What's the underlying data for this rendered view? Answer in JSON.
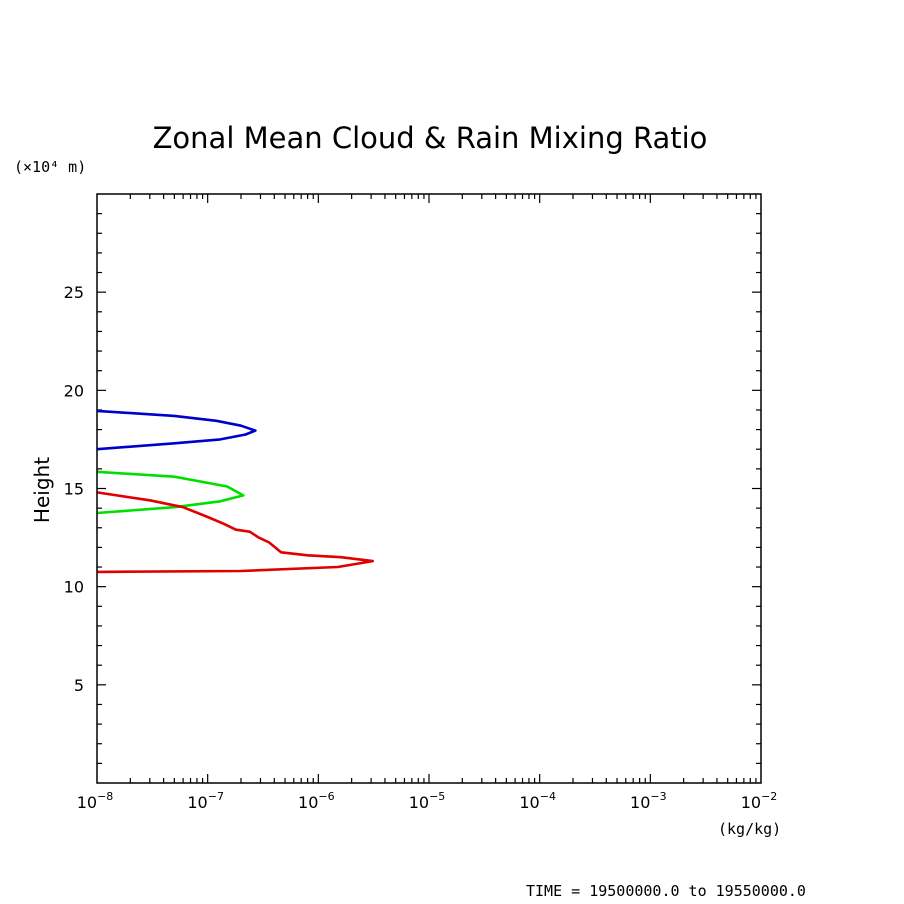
{
  "chart_data": {
    "type": "line",
    "title": "Zonal Mean Cloud & Rain Mixing Ratio",
    "ylabel": "Height",
    "yunit": "(×10⁴ m)",
    "xunit": "(kg/kg)",
    "xscale": "log",
    "xlim": [
      1e-08,
      0.01
    ],
    "ylim": [
      0,
      30
    ],
    "yticks": [
      5,
      10,
      15,
      20,
      25
    ],
    "xticks": [
      {
        "base": "10",
        "exp": "−8",
        "value": 1e-08
      },
      {
        "base": "10",
        "exp": "−7",
        "value": 1e-07
      },
      {
        "base": "10",
        "exp": "−6",
        "value": 1e-06
      },
      {
        "base": "10",
        "exp": "−5",
        "value": 1e-05
      },
      {
        "base": "10",
        "exp": "−4",
        "value": 0.0001
      },
      {
        "base": "10",
        "exp": "−3",
        "value": 0.001
      },
      {
        "base": "10",
        "exp": "−2",
        "value": 0.01
      }
    ],
    "grid": false,
    "series": [
      {
        "color": "#0000cc",
        "points": [
          {
            "x": 1e-08,
            "y": 18.95
          },
          {
            "x": 5e-08,
            "y": 18.7
          },
          {
            "x": 1.2e-07,
            "y": 18.45
          },
          {
            "x": 2e-07,
            "y": 18.2
          },
          {
            "x": 2.7e-07,
            "y": 17.95
          },
          {
            "x": 2.2e-07,
            "y": 17.75
          },
          {
            "x": 1.3e-07,
            "y": 17.5
          },
          {
            "x": 5e-08,
            "y": 17.3
          },
          {
            "x": 1e-08,
            "y": 17.0
          }
        ]
      },
      {
        "color": "#00e000",
        "points": [
          {
            "x": 1e-08,
            "y": 15.85
          },
          {
            "x": 5e-08,
            "y": 15.6
          },
          {
            "x": 1.5e-07,
            "y": 15.1
          },
          {
            "x": 2.1e-07,
            "y": 14.65
          },
          {
            "x": 1.3e-07,
            "y": 14.35
          },
          {
            "x": 5e-08,
            "y": 14.05
          },
          {
            "x": 1e-08,
            "y": 13.75
          }
        ]
      },
      {
        "color": "#e00000",
        "points": [
          {
            "x": 1e-08,
            "y": 14.8
          },
          {
            "x": 3e-08,
            "y": 14.4
          },
          {
            "x": 6e-08,
            "y": 14.05
          },
          {
            "x": 1e-07,
            "y": 13.55
          },
          {
            "x": 1.4e-07,
            "y": 13.2
          },
          {
            "x": 1.8e-07,
            "y": 12.9
          },
          {
            "x": 2.4e-07,
            "y": 12.8
          },
          {
            "x": 2.9e-07,
            "y": 12.5
          },
          {
            "x": 3.6e-07,
            "y": 12.25
          },
          {
            "x": 4.6e-07,
            "y": 11.75
          },
          {
            "x": 8e-07,
            "y": 11.6
          },
          {
            "x": 1.6e-06,
            "y": 11.5
          },
          {
            "x": 3.1e-06,
            "y": 11.3
          },
          {
            "x": 1.5e-06,
            "y": 11.0
          },
          {
            "x": 2e-07,
            "y": 10.8
          },
          {
            "x": 1e-08,
            "y": 10.75
          }
        ]
      }
    ]
  },
  "footer": {
    "time_range": "TIME = 19500000.0 to 19550000.0"
  }
}
